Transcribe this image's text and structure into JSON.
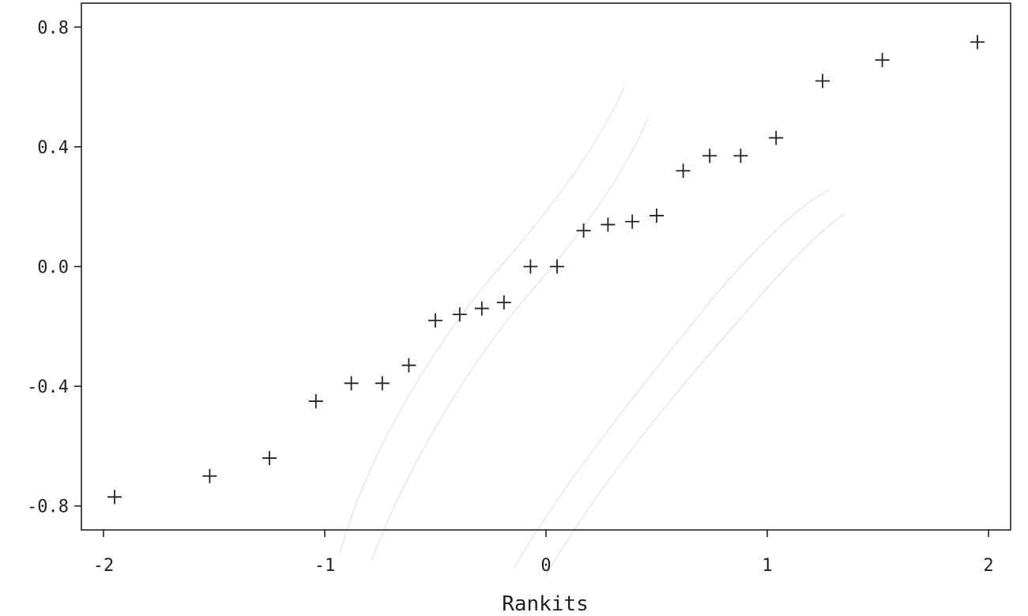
{
  "chart_data": {
    "type": "scatter",
    "title": "",
    "xlabel": "Rankits",
    "ylabel": "",
    "xlim": [
      -2.1,
      2.1
    ],
    "ylim": [
      -0.88,
      0.88
    ],
    "x_ticks": [
      -2,
      -1,
      0,
      1,
      2
    ],
    "x_tick_labels": [
      "-2",
      "-1",
      "0",
      "1",
      "2"
    ],
    "y_ticks": [
      -0.8,
      -0.4,
      0.0,
      0.4,
      0.8
    ],
    "y_tick_labels": [
      "-0.8",
      "-0.4",
      "0.0",
      "0.4",
      "0.8"
    ],
    "grid": false,
    "marker": "+",
    "color": "#222222",
    "series": [
      {
        "x": [
          -1.95,
          -1.52,
          -1.25,
          -1.04,
          -0.88,
          -0.74,
          -0.62,
          -0.5,
          -0.39,
          -0.29,
          -0.19,
          -0.07,
          0.05,
          0.17,
          0.28,
          0.39,
          0.5,
          0.62,
          0.74,
          0.88,
          1.04,
          1.25,
          1.52,
          1.95
        ],
        "y": [
          -0.77,
          -0.7,
          -0.64,
          -0.45,
          -0.39,
          -0.39,
          -0.33,
          -0.18,
          -0.16,
          -0.14,
          -0.12,
          0.0,
          0.0,
          0.12,
          0.14,
          0.15,
          0.17,
          0.32,
          0.37,
          0.37,
          0.43,
          0.62,
          0.69,
          0.75
        ]
      }
    ]
  }
}
